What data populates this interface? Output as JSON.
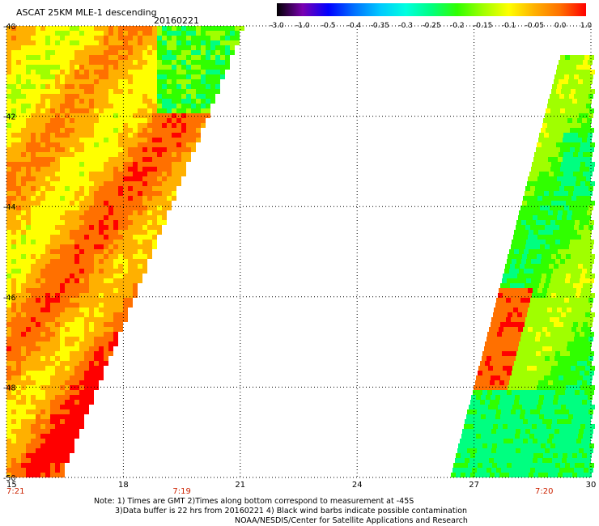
{
  "header": {
    "title": "ASCAT 25KM MLE-1 descending",
    "date": "20160221"
  },
  "colorbar": {
    "labels": [
      "-3.0",
      "-1.0",
      "-0.5",
      "-0.4",
      "-0.35",
      "-0.3",
      "-0.25",
      "-0.2",
      "-0.15",
      "-0.1",
      "-0.05",
      "0.0",
      "1.0"
    ],
    "colors": [
      "#000000",
      "#7a00b0",
      "#0000ff",
      "#0070ff",
      "#00c8ff",
      "#00ffe0",
      "#00ff80",
      "#30ff00",
      "#a0ff00",
      "#ffff00",
      "#ffb000",
      "#ff7000",
      "#ff0000"
    ]
  },
  "chart_data": {
    "type": "heatmap",
    "x_ticks": [
      "15",
      "18",
      "21",
      "24",
      "27",
      "30"
    ],
    "y_ticks": [
      "-40",
      "-42",
      "-44",
      "-46",
      "-48",
      "-50"
    ],
    "xlim": [
      15,
      30
    ],
    "ylim": [
      -50,
      -40
    ],
    "grid": true,
    "swaths": [
      {
        "region": "left",
        "lon_range": [
          15,
          21
        ],
        "dominant_values": "-0.15 to 0.0"
      },
      {
        "region": "right",
        "lon_range": [
          26.5,
          30
        ],
        "dominant_values": "-0.3 to -0.1"
      }
    ]
  },
  "time_labels": [
    {
      "text": "7:21",
      "lon": 15
    },
    {
      "text": "7:19",
      "lon": 19.5
    },
    {
      "text": "7:20",
      "lon": 28.8
    }
  ],
  "footer": {
    "line1": "Note: 1) Times are GMT 2)Times along bottom correspond to measurement at -45S",
    "line2": "3)Data buffer is 22 hrs from 20160221 4) Black wind barbs indicate possible contamination",
    "line3": "NOAA/NESDIS/Center for Satellite Applications and Research"
  }
}
